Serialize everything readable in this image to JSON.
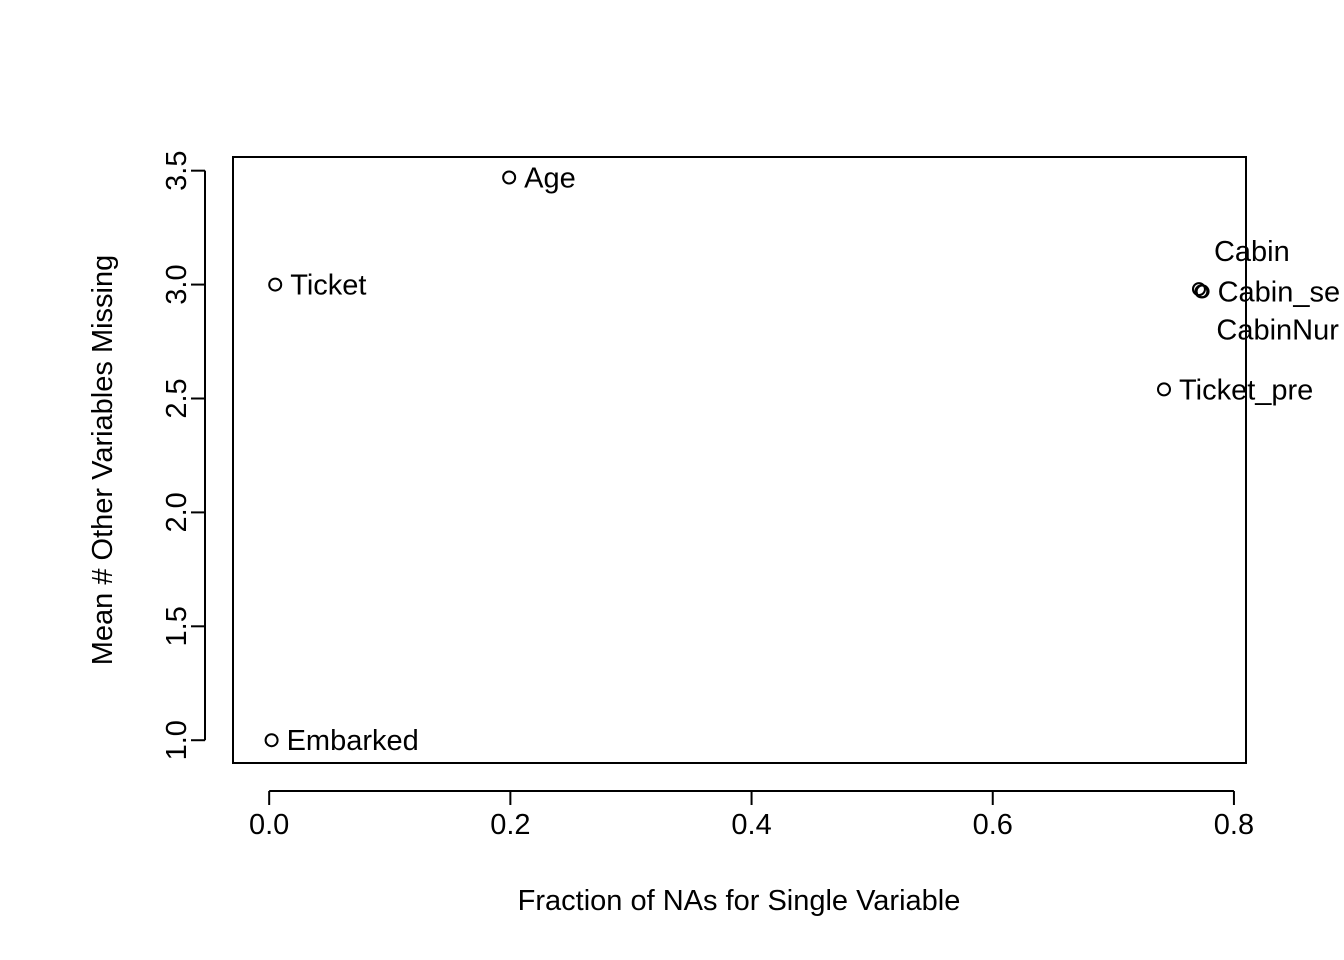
{
  "chart_data": {
    "type": "scatter",
    "title": "",
    "xlabel": "Fraction of NAs for Single Variable",
    "ylabel": "Mean # Other Variables Missing",
    "xlim": [
      -0.03,
      0.81
    ],
    "ylim": [
      0.9,
      3.56
    ],
    "x_ticks": [
      "0.0",
      "0.2",
      "0.4",
      "0.6",
      "0.8"
    ],
    "y_ticks": [
      "1.0",
      "1.5",
      "2.0",
      "2.5",
      "3.0",
      "3.5"
    ],
    "grid": false,
    "legend": "none",
    "points": [
      {
        "label": "Embarked",
        "x": 0.002,
        "y": 1.0
      },
      {
        "label": "Ticket",
        "x": 0.005,
        "y": 3.0
      },
      {
        "label": "Age",
        "x": 0.199,
        "y": 3.47
      },
      {
        "label": "Ticket_pre",
        "x": 0.742,
        "y": 2.54
      },
      {
        "label": "Cabin",
        "x": 0.771,
        "y": 2.98
      },
      {
        "label": "Cabin_se",
        "x": 0.774,
        "y": 2.97
      },
      {
        "label": "CabinNur",
        "x": 0.773,
        "y": 2.97
      }
    ]
  }
}
